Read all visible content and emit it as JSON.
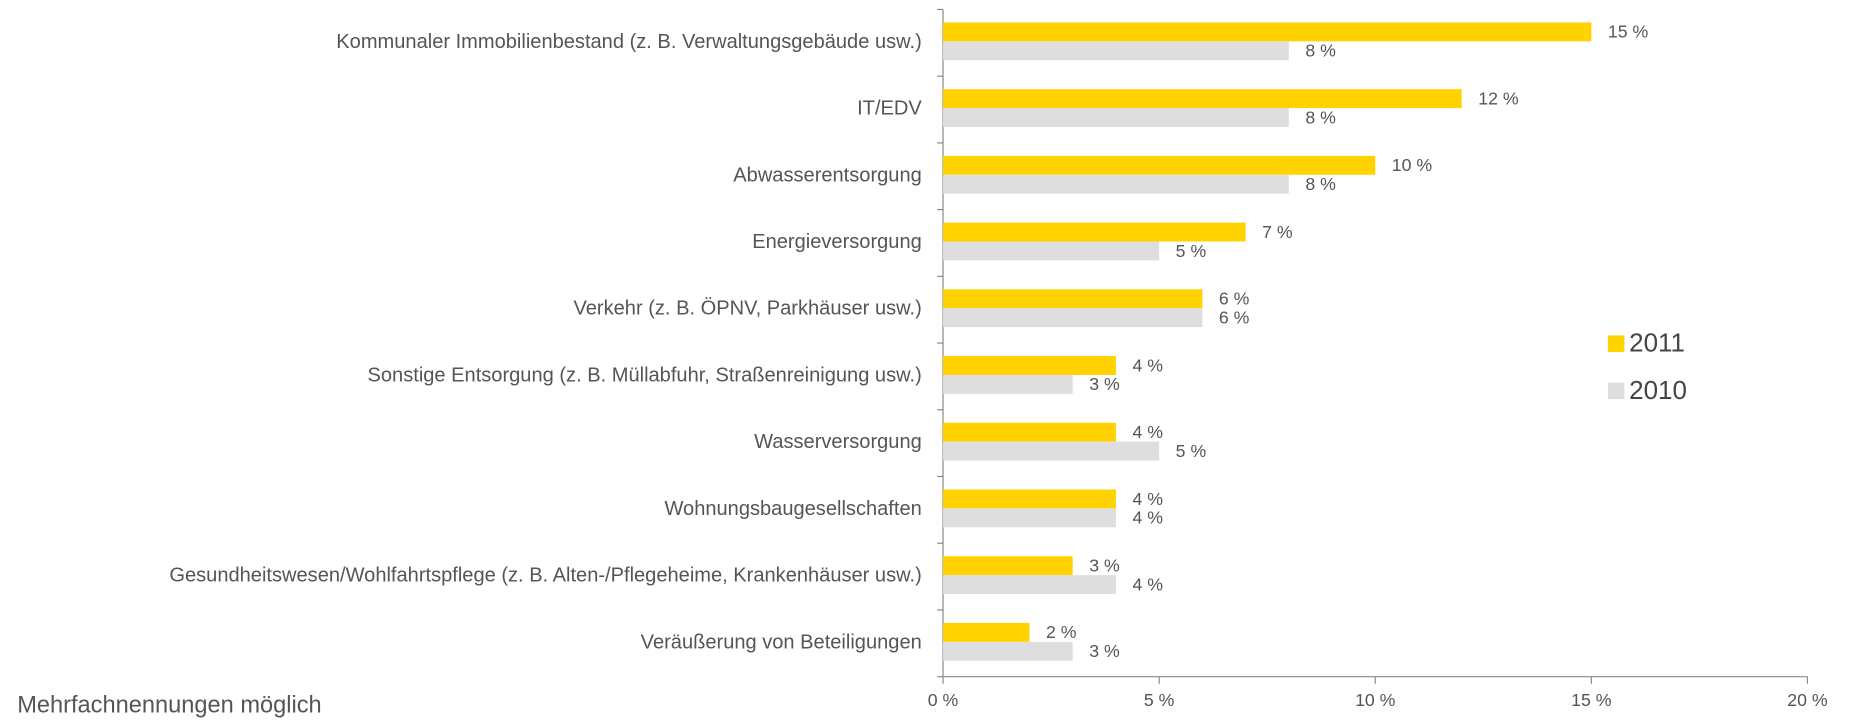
{
  "chart_data": {
    "type": "bar",
    "orientation": "horizontal",
    "categories": [
      "Kommunaler Immobilienbestand (z. B. Verwaltungsgebäude usw.)",
      "IT/EDV",
      "Abwasserentsorgung",
      "Energieversorgung",
      "Verkehr (z. B. ÖPNV, Parkhäuser usw.)",
      "Sonstige Entsorgung (z. B. Müllabfuhr, Straßenreinigung usw.)",
      "Wasserversorgung",
      "Wohnungsbaugesellschaften",
      "Gesundheitswesen/Wohlfahrtspflege (z. B. Alten-/Pflegeheime, Krankenhäuser usw.)",
      "Veräußerung von Beteiligungen"
    ],
    "series": [
      {
        "name": "2011",
        "color": "#ffd200",
        "values": [
          15,
          12,
          10,
          7,
          6,
          4,
          4,
          4,
          3,
          2
        ],
        "value_labels": [
          "15 %",
          "12 %",
          "10 %",
          "7 %",
          "6 %",
          "4 %",
          "4 %",
          "4 %",
          "3 %",
          "2 %"
        ]
      },
      {
        "name": "2010",
        "color": "#dedede",
        "values": [
          8,
          8,
          8,
          5,
          6,
          3,
          5,
          4,
          4,
          3
        ],
        "value_labels": [
          "8 %",
          "8 %",
          "8 %",
          "5 %",
          "6 %",
          "3 %",
          "5 %",
          "4 %",
          "4 %",
          "3 %"
        ]
      }
    ],
    "xlim": [
      0,
      20
    ],
    "xticks": [
      {
        "value": 0,
        "label": "0 %"
      },
      {
        "value": 5,
        "label": "5 %"
      },
      {
        "value": 10,
        "label": "10 %"
      },
      {
        "value": 15,
        "label": "15 %"
      },
      {
        "value": 20,
        "label": "20 %"
      }
    ],
    "legend": "right",
    "note": "Mehrfachnennungen möglich"
  }
}
